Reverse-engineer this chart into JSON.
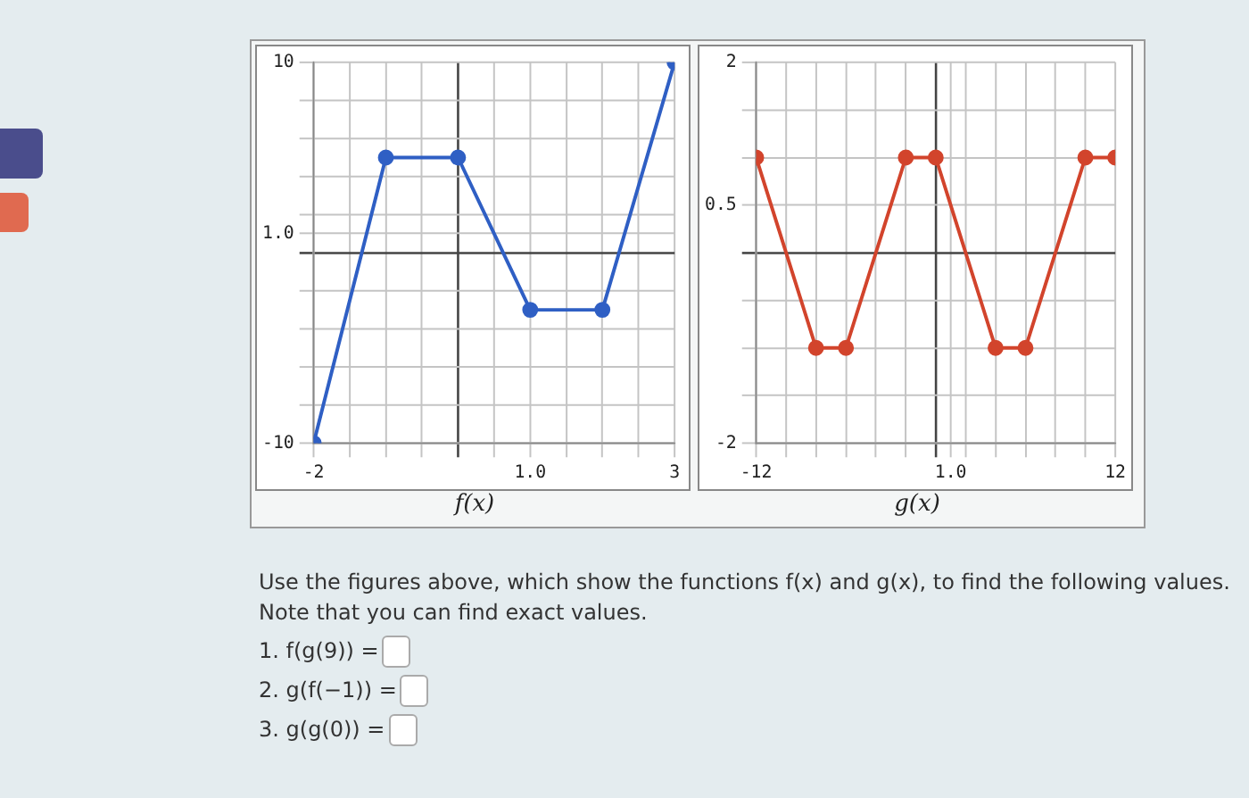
{
  "chart_data": [
    {
      "type": "line",
      "xlabel": "f(x)",
      "color": "#2f5fc4",
      "marker": "circle",
      "grid": true,
      "x": [
        -2,
        -1,
        0,
        1,
        2,
        3
      ],
      "values": [
        -10,
        5,
        5,
        -3,
        -3,
        10
      ],
      "xlim": [
        -2,
        3
      ],
      "ylim": [
        -10,
        10
      ],
      "xticks": [
        -2,
        {
          "value": -1.5,
          "label": null
        },
        {
          "value": -1,
          "label": null
        },
        {
          "value": -0.5,
          "label": null
        },
        {
          "value": 0,
          "label": null
        },
        {
          "value": 0.5,
          "label": null
        },
        {
          "value": 1,
          "label": "1.0"
        },
        {
          "value": 1.5,
          "label": null
        },
        {
          "value": 2,
          "label": null
        },
        {
          "value": 2.5,
          "label": null
        },
        3
      ],
      "yticks": [
        -10,
        {
          "value": -8,
          "label": null
        },
        {
          "value": -6,
          "label": null
        },
        {
          "value": -4,
          "label": null
        },
        {
          "value": -2,
          "label": null
        },
        {
          "value": 0,
          "label": null
        },
        {
          "value": 1,
          "label": "1.0"
        },
        {
          "value": 2,
          "label": null
        },
        {
          "value": 4,
          "label": null
        },
        {
          "value": 6,
          "label": null
        },
        {
          "value": 8,
          "label": null
        },
        10
      ]
    },
    {
      "type": "line",
      "xlabel": "g(x)",
      "color": "#d2442c",
      "marker": "circle",
      "grid": true,
      "x": [
        -12,
        -8,
        -6,
        -2,
        0,
        4,
        6,
        10,
        12
      ],
      "values": [
        1,
        -1,
        -1,
        1,
        1,
        -1,
        -1,
        1,
        1
      ],
      "xlim": [
        -12,
        12
      ],
      "ylim": [
        -2,
        2
      ],
      "xticks": [
        -12,
        {
          "value": -10,
          "label": null
        },
        {
          "value": -8,
          "label": null
        },
        {
          "value": -6,
          "label": null
        },
        {
          "value": -4,
          "label": null
        },
        {
          "value": -2,
          "label": null
        },
        {
          "value": 0,
          "label": null
        },
        {
          "value": 1,
          "label": "1.0"
        },
        {
          "value": 2,
          "label": null
        },
        {
          "value": 4,
          "label": null
        },
        {
          "value": 6,
          "label": null
        },
        {
          "value": 8,
          "label": null
        },
        {
          "value": 10,
          "label": null
        },
        12
      ],
      "yticks": [
        -2,
        {
          "value": -1.5,
          "label": null
        },
        {
          "value": -1,
          "label": null
        },
        {
          "value": -0.5,
          "label": null
        },
        {
          "value": 0,
          "label": null
        },
        {
          "value": 0.5,
          "label": "0.5"
        },
        {
          "value": 1,
          "label": null
        },
        {
          "value": 1.5,
          "label": null
        },
        2
      ],
      "annotations": [
        "Use the figures above, which show the functions f(x) and g(x), to find the following values. Note that you can find exact values.",
        "1. f(g(9)) =",
        "2. g(f(−1)) =",
        "3. g(g(0)) ="
      ]
    }
  ]
}
